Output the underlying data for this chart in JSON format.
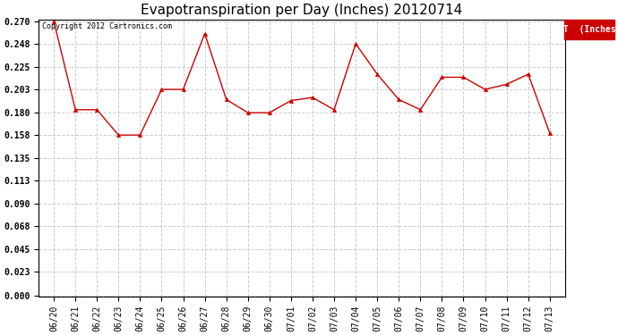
{
  "title": "Evapotranspiration per Day (Inches) 20120714",
  "copyright_text": "Copyright 2012 Cartronics.com",
  "legend_label": "ET  (Inches)",
  "legend_bg": "#cc0000",
  "legend_fg": "#ffffff",
  "x_labels": [
    "06/20",
    "06/21",
    "06/22",
    "06/23",
    "06/24",
    "06/25",
    "06/26",
    "06/27",
    "06/28",
    "06/29",
    "06/30",
    "07/01",
    "07/02",
    "07/03",
    "07/04",
    "07/05",
    "07/06",
    "07/07",
    "07/08",
    "07/09",
    "07/10",
    "07/11",
    "07/12",
    "07/13"
  ],
  "y_values": [
    0.27,
    0.183,
    0.183,
    0.158,
    0.158,
    0.203,
    0.203,
    0.258,
    0.193,
    0.18,
    0.18,
    0.192,
    0.195,
    0.183,
    0.248,
    0.218,
    0.193,
    0.183,
    0.215,
    0.215,
    0.203,
    0.208,
    0.218,
    0.16
  ],
  "line_color": "#cc0000",
  "marker": "^",
  "marker_size": 3,
  "ylim_min": 0.0,
  "ylim_max": 0.27,
  "yticks": [
    0.0,
    0.023,
    0.045,
    0.068,
    0.09,
    0.113,
    0.135,
    0.158,
    0.18,
    0.203,
    0.225,
    0.248,
    0.27
  ],
  "grid_color": "#cccccc",
  "grid_linestyle": "--",
  "bg_color": "#ffffff",
  "title_fontsize": 11,
  "tick_fontsize": 7,
  "copyright_fontsize": 6,
  "legend_fontsize": 7
}
